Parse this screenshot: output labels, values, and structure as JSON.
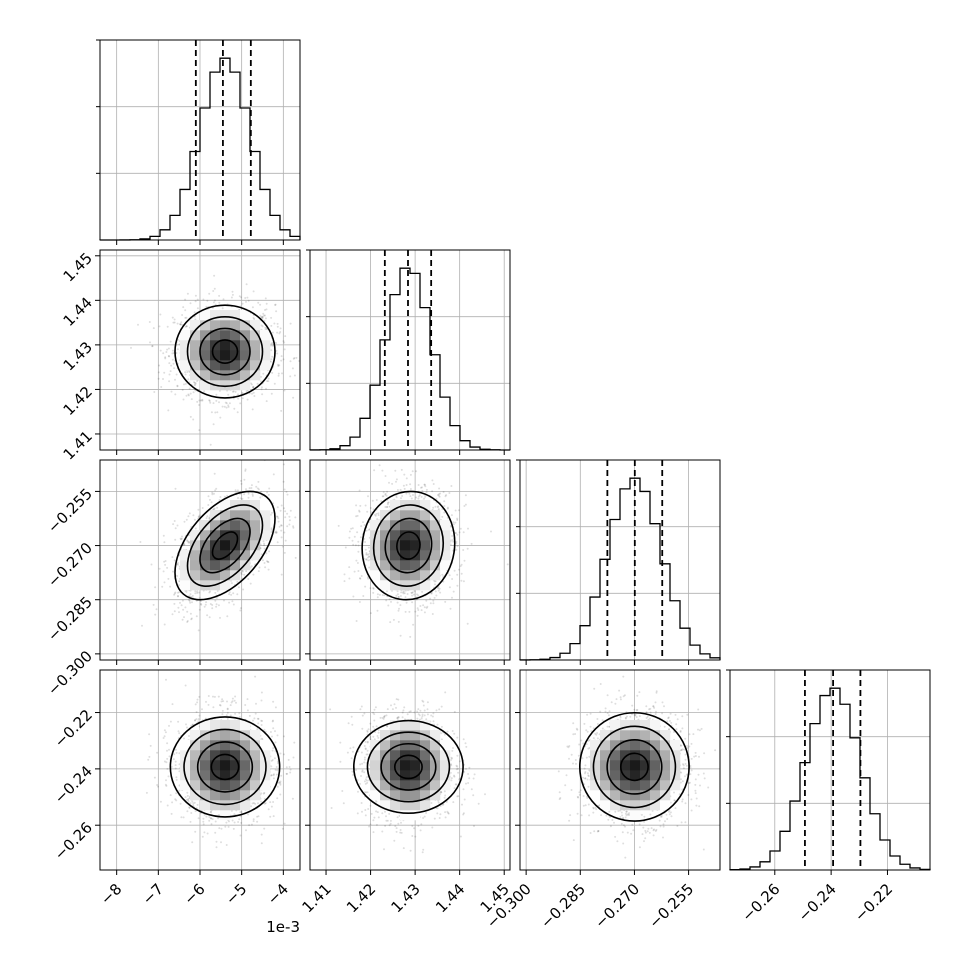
{
  "chart_data": {
    "type": "corner",
    "parameters": [
      {
        "range": [
          -8.4,
          -3.6
        ],
        "scale_label": "1e-3",
        "ticks": [
          -8,
          -7,
          -6,
          -5,
          -4
        ],
        "tick_labels": [
          "−8",
          "−7",
          "−6",
          "−5",
          "−4"
        ],
        "quantiles": [
          -6.1,
          -5.45,
          -4.78
        ],
        "mean": -5.4,
        "sd": 0.6
      },
      {
        "range": [
          1.4064,
          1.4513
        ],
        "ticks": [
          1.41,
          1.42,
          1.43,
          1.44,
          1.45
        ],
        "tick_labels": [
          "1.41",
          "1.42",
          "1.43",
          "1.44",
          "1.45"
        ],
        "quantiles": [
          1.4232,
          1.4284,
          1.4336
        ],
        "mean": 1.4285,
        "sd": 0.0052
      },
      {
        "range": [
          -0.3017,
          -0.2463
        ],
        "ticks": [
          -0.3,
          -0.285,
          -0.27,
          -0.255
        ],
        "tick_labels": [
          "−0.300",
          "−0.285",
          "−0.270",
          "−0.255"
        ],
        "quantiles": [
          -0.2775,
          -0.2699,
          -0.2623
        ],
        "mean": -0.27,
        "sd": 0.0075
      },
      {
        "range": [
          -0.2759,
          -0.2049
        ],
        "ticks": [
          -0.26,
          -0.24,
          -0.22
        ],
        "tick_labels": [
          "−0.26",
          "−0.24",
          "−0.22"
        ],
        "quantiles": [
          -0.2493,
          -0.2393,
          -0.2296
        ],
        "mean": -0.2393,
        "sd": 0.0097
      }
    ],
    "correlations": {
      "2-0": 0.5,
      "2-1": 0.05,
      "1-0": 0.0,
      "3-0": 0.0,
      "3-1": 0.0,
      "3-2": 0.0
    },
    "hist_bins": 20,
    "contour_levels": [
      0.5,
      1.0,
      1.5,
      2.0
    ],
    "grid": true,
    "title": "",
    "colors": {
      "line": "#000000",
      "grid": "#b0b0b0",
      "points": "#000000"
    }
  }
}
